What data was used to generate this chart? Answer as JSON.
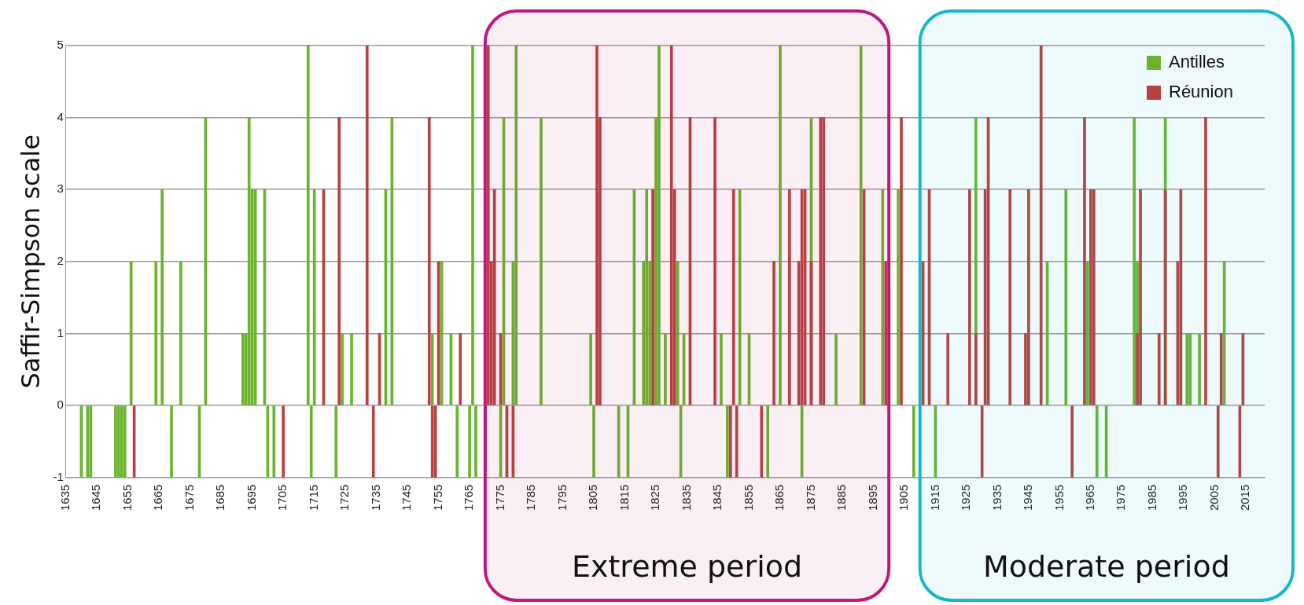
{
  "chart_data": {
    "type": "bar",
    "ylabel": "Saffir-Simpson scale",
    "xlim": [
      1635,
      2021
    ],
    "xticks": [
      1635,
      1645,
      1655,
      1665,
      1675,
      1685,
      1695,
      1705,
      1715,
      1725,
      1735,
      1745,
      1755,
      1765,
      1775,
      1785,
      1795,
      1805,
      1815,
      1825,
      1835,
      1845,
      1855,
      1865,
      1875,
      1885,
      1895,
      1905,
      1915,
      1925,
      1935,
      1945,
      1955,
      1965,
      1975,
      1985,
      1995,
      2005,
      2015
    ],
    "ylim": [
      -1,
      5
    ],
    "yticks": [
      -1,
      0,
      1,
      2,
      3,
      4,
      5
    ],
    "grid": "y",
    "legend": "top right",
    "series": [
      {
        "name": "Antilles",
        "color": "#6ab42d",
        "x": [
          1640,
          1642,
          1643,
          1651,
          1652,
          1653,
          1654,
          1656,
          1664,
          1666,
          1669,
          1672,
          1678,
          1680,
          1692,
          1693,
          1694,
          1695,
          1696,
          1699,
          1700,
          1702,
          1713,
          1714,
          1715,
          1722,
          1724,
          1727,
          1738,
          1740,
          1753,
          1756,
          1759,
          1761,
          1765,
          1766,
          1767,
          1775,
          1776,
          1779,
          1780,
          1788,
          1804,
          1805,
          1813,
          1816,
          1818,
          1821,
          1822,
          1823,
          1825,
          1826,
          1828,
          1832,
          1833,
          1834,
          1846,
          1848,
          1852,
          1855,
          1861,
          1865,
          1872,
          1875,
          1883,
          1891,
          1898,
          1903,
          1908,
          1915,
          1928,
          1951,
          1957,
          1964,
          1967,
          1970,
          1979,
          1980,
          1989,
          1996,
          1997,
          2000,
          2008
        ],
        "values": [
          -1,
          -1,
          -1,
          -1,
          -1,
          -1,
          -1,
          2,
          2,
          3,
          -1,
          2,
          -1,
          4,
          1,
          1,
          4,
          3,
          3,
          3,
          -1,
          -1,
          5,
          -1,
          3,
          -1,
          1,
          1,
          3,
          4,
          1,
          2,
          1,
          -1,
          -1,
          5,
          -1,
          -1,
          4,
          2,
          5,
          4,
          1,
          -1,
          -1,
          -1,
          3,
          2,
          3,
          2,
          4,
          5,
          1,
          2,
          -1,
          1,
          1,
          -1,
          3,
          1,
          -1,
          5,
          -1,
          4,
          1,
          5,
          3,
          3,
          -1,
          -1,
          4,
          2,
          3,
          2,
          -1,
          -1,
          4,
          2,
          4,
          1,
          1,
          1,
          2
        ]
      },
      {
        "name": "Réunion",
        "color": "#b94040",
        "x": [
          1657,
          1705,
          1718,
          1723,
          1732,
          1734,
          1736,
          1752,
          1753,
          1754,
          1755,
          1762,
          1770,
          1771,
          1772,
          1773,
          1775,
          1777,
          1779,
          1806,
          1807,
          1824,
          1830,
          1831,
          1836,
          1844,
          1849,
          1850,
          1851,
          1859,
          1863,
          1868,
          1871,
          1872,
          1873,
          1875,
          1878,
          1879,
          1892,
          1899,
          1904,
          1911,
          1913,
          1919,
          1926,
          1928,
          1930,
          1931,
          1932,
          1939,
          1944,
          1945,
          1949,
          1959,
          1963,
          1965,
          1966,
          1980,
          1981,
          1987,
          1989,
          1993,
          1994,
          2002,
          2006,
          2007,
          2013,
          2014
        ],
        "values": [
          -1,
          -1,
          3,
          4,
          5,
          -1,
          1,
          4,
          -1,
          -1,
          2,
          1,
          -1,
          5,
          2,
          3,
          1,
          -1,
          -1,
          5,
          4,
          3,
          5,
          3,
          4,
          4,
          -1,
          3,
          -1,
          -1,
          2,
          3,
          2,
          3,
          3,
          2,
          4,
          4,
          3,
          2,
          4,
          2,
          3,
          1,
          3,
          1,
          -1,
          3,
          4,
          3,
          1,
          3,
          5,
          -1,
          4,
          3,
          3,
          1,
          3,
          1,
          3,
          2,
          3,
          4,
          -1,
          1,
          -1,
          1
        ]
      }
    ],
    "bands": [
      {
        "axis": "x",
        "from": 1770,
        "to": 1900,
        "label": "Extreme period",
        "color": "#c0187a"
      },
      {
        "axis": "x",
        "from": 1910,
        "to": 2021,
        "label": "Moderate period",
        "color": "#14b8c8"
      }
    ]
  }
}
